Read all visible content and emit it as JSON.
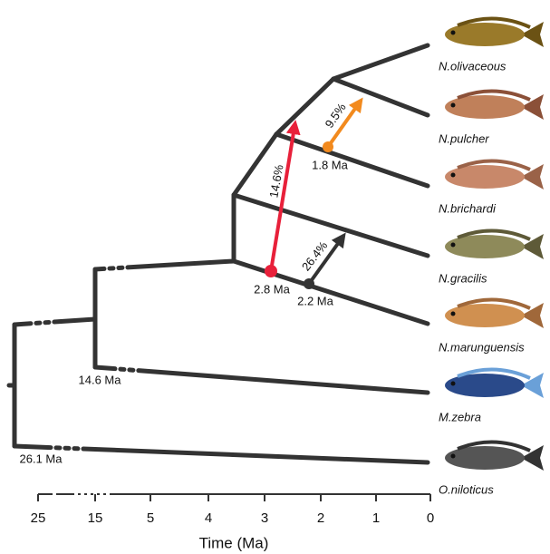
{
  "species": [
    "N.olivaceous",
    "N.pulcher",
    "N.brichardi",
    "N.gracilis",
    "N.marunguensis",
    "M.zebra",
    "O.niloticus"
  ],
  "node_ages": [
    "2.8 Ma",
    "1.8 Ma",
    "2.2 Ma",
    "14.6 Ma",
    "26.1 Ma"
  ],
  "percentages": [
    "14.6%",
    "9.5%",
    "26.4%"
  ],
  "axis": {
    "ticks": [
      "25",
      "15",
      "5",
      "4",
      "3",
      "2",
      "1",
      "0"
    ],
    "label": "Time (Ma)"
  }
}
